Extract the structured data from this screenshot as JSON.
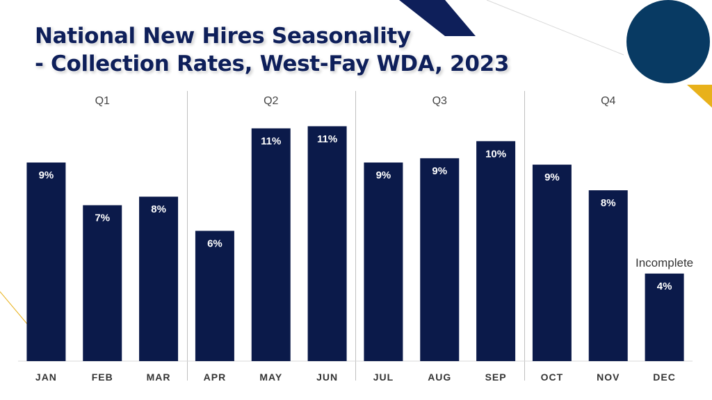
{
  "title_line1": "National New Hires Seasonality",
  "title_line2": "- Collection Rates, West-Fay WDA, 2023",
  "colors": {
    "bar": "#0b1a4a",
    "title": "#0e1f5a",
    "circle": "#083a63",
    "accent_gold": "#e8b11b",
    "divider": "#bfbfbf"
  },
  "chart_data": {
    "type": "bar",
    "title": "National New Hires Seasonality - Collection Rates, West-Fay WDA, 2023",
    "categories": [
      "JAN",
      "FEB",
      "MAR",
      "APR",
      "MAY",
      "JUN",
      "JUL",
      "AUG",
      "SEP",
      "OCT",
      "NOV",
      "DEC"
    ],
    "values": [
      9.3,
      7.3,
      7.7,
      6.1,
      10.9,
      11.0,
      9.3,
      9.5,
      10.3,
      9.2,
      8.0,
      4.1
    ],
    "data_labels": [
      "9%",
      "7%",
      "8%",
      "6%",
      "11%",
      "11%",
      "9%",
      "9%",
      "10%",
      "9%",
      "8%",
      "4%"
    ],
    "ylim": [
      0,
      12
    ],
    "groups": [
      "Q1",
      "Q2",
      "Q3",
      "Q4"
    ],
    "annotation": "Incomplete",
    "grid": false,
    "legend": "none"
  }
}
